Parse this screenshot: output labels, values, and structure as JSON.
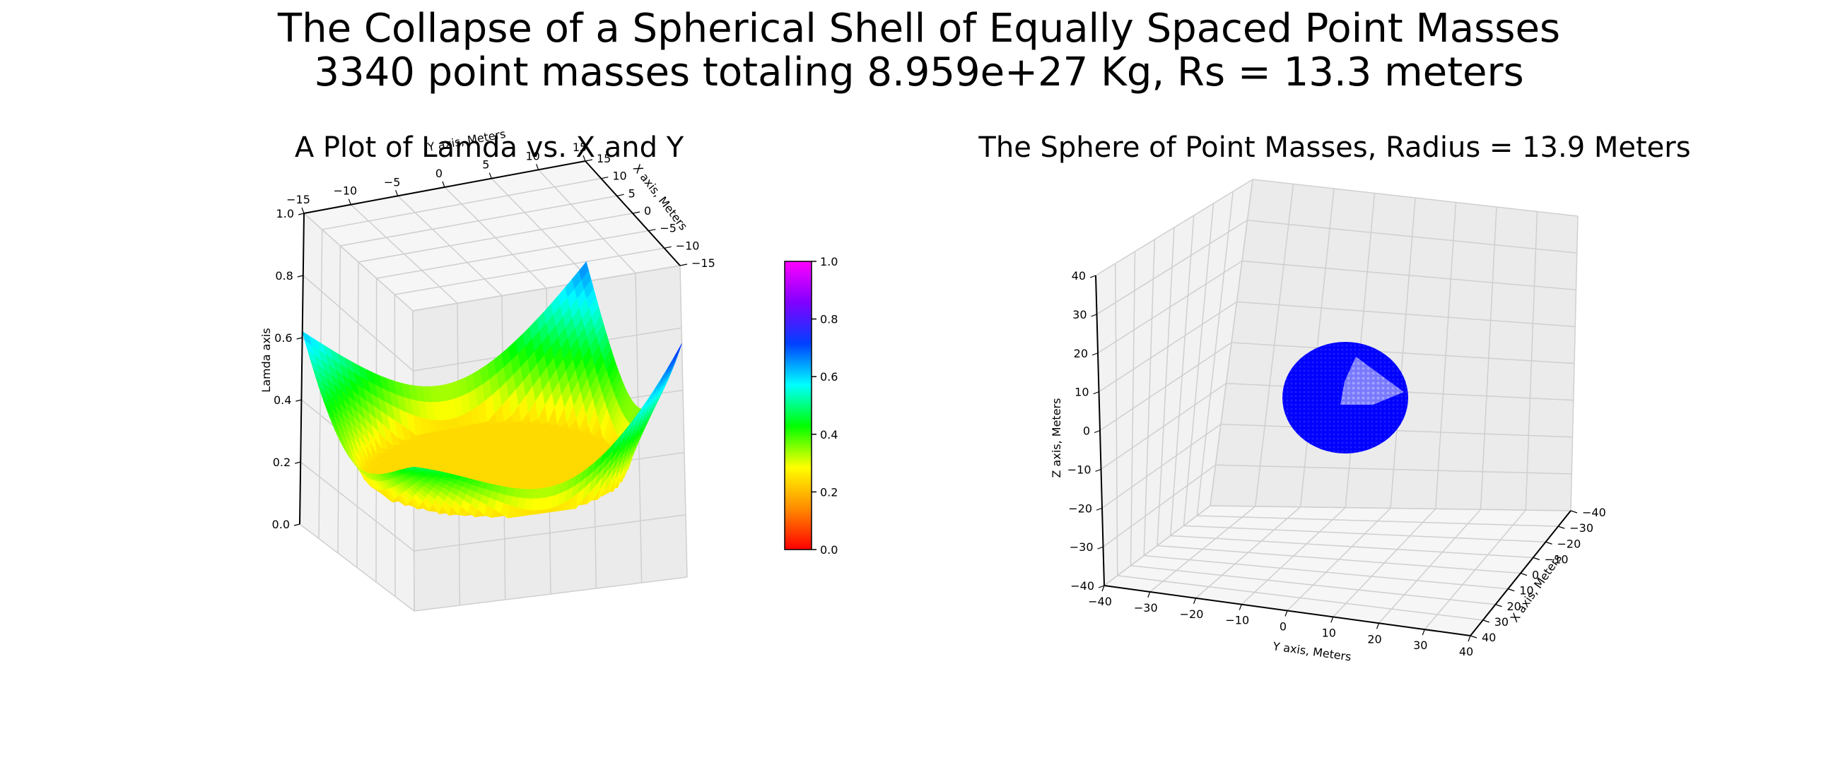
{
  "figure": {
    "title_line1": "The Collapse of a Spherical Shell of Equally Spaced Point Masses",
    "title_line2": "3340 point masses totaling 8.959e+27 Kg, Rs = 13.3 meters"
  },
  "chart_data": [
    {
      "type": "surface3d",
      "title": "A Plot of Lamda vs. X and Y",
      "xlabel": "X axis, Meters",
      "ylabel": "Y axis, Meters",
      "zlabel": "Lamda axis",
      "x_ticks": [
        "15",
        "10",
        "5",
        "0",
        "−5",
        "−10",
        "−15"
      ],
      "y_ticks": [
        "−15",
        "−10",
        "−5",
        "0",
        "5",
        "10",
        "15"
      ],
      "z_ticks": [
        "0.0",
        "0.2",
        "0.4",
        "0.6",
        "0.8",
        "1.0"
      ],
      "xlim": [
        -15,
        15
      ],
      "ylim": [
        -15,
        15
      ],
      "zlim": [
        0,
        1
      ],
      "surface": {
        "flat_inside_value": 0.24,
        "corner_values": [
          0.62,
          0.67,
          0.75,
          0.48
        ],
        "edge_midpoint_values": [
          0.35,
          0.48,
          0.38,
          0.3
        ]
      },
      "grid": true,
      "colorbar": {
        "colormap": "gist_rainbow",
        "ticks": [
          "0.0",
          "0.2",
          "0.4",
          "0.6",
          "0.8",
          "1.0"
        ],
        "range": [
          0,
          1
        ],
        "colors": [
          "#ff0000",
          "#ff8c00",
          "#ffff00",
          "#00ff00",
          "#00ffff",
          "#0040ff",
          "#8000ff",
          "#ff00ff"
        ]
      }
    },
    {
      "type": "scatter3d",
      "title": "The Sphere of Point Masses, Radius = 13.9 Meters",
      "xlabel": "X axis, Meters",
      "ylabel": "Y axis, Meters",
      "zlabel": "Z axis, Meters",
      "x_ticks": [
        "−40",
        "−30",
        "−20",
        "−10",
        "0",
        "10",
        "20",
        "30",
        "40"
      ],
      "y_ticks": [
        "−40",
        "−30",
        "−20",
        "−10",
        "0",
        "10",
        "20",
        "30",
        "40"
      ],
      "z_ticks": [
        "−40",
        "−30",
        "−20",
        "−10",
        "0",
        "10",
        "20",
        "30",
        "40"
      ],
      "xlim": [
        -40,
        40
      ],
      "ylim": [
        -40,
        40
      ],
      "zlim": [
        -40,
        40
      ],
      "sphere": {
        "radius": 13.9,
        "point_count": 3340,
        "color": "#0000ff",
        "highlight_color": "#8a8aff"
      },
      "grid": true
    }
  ]
}
